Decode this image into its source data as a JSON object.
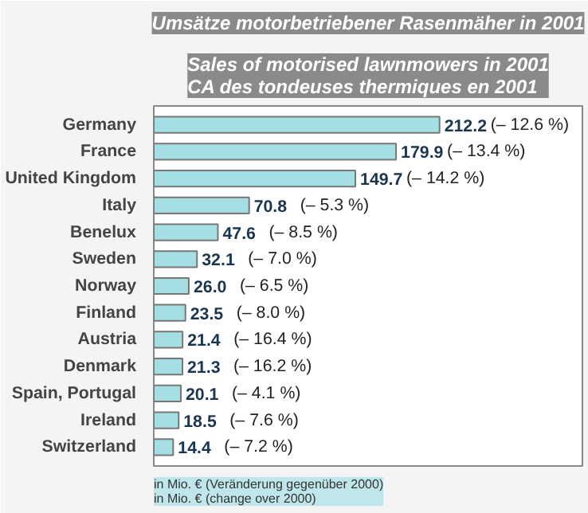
{
  "chart_data": {
    "type": "bar",
    "orientation": "horizontal",
    "data_labels": true,
    "title": "Umsätze motorbetriebener Rasenmäher in 2001",
    "subtitle": "Sales of motorised lawnmowers in 2001\nCA des tondeuses thermiques en 2001",
    "categories": [
      "Germany",
      "France",
      "United Kingdom",
      "Italy",
      "Benelux",
      "Sweden",
      "Norway",
      "Finland",
      "Austria",
      "Denmark",
      "Spain, Portugal",
      "Ireland",
      "Switzerland"
    ],
    "values": [
      212.2,
      179.9,
      149.7,
      70.8,
      47.6,
      32.1,
      26.0,
      23.5,
      21.4,
      21.3,
      20.1,
      18.5,
      14.4
    ],
    "value_labels": [
      "212.2",
      "179.9",
      "149.7",
      "70.8",
      "47.6",
      "32.1",
      "26.0",
      "23.5",
      "21.4",
      "21.3",
      "20.1",
      "18.5",
      "14.4"
    ],
    "color": "#a6dfe3",
    "annotations": [
      "(– 12.6 %)",
      "(– 13.4 %)",
      "(– 14.2 %)",
      "(– 5.3 %)",
      "(– 8.5 %)",
      "(– 7.0 %)",
      "(– 6.5 %)",
      "(– 8.0 %)",
      "(– 16.4 %)",
      "(– 16.2 %)",
      "(– 4.1 %)",
      "(– 7.6 %)",
      "(– 7.2 %)",
      "in Mio. € (Veränderung gegenüber 2000)\nin Mio. € (change over 2000)"
    ]
  }
}
